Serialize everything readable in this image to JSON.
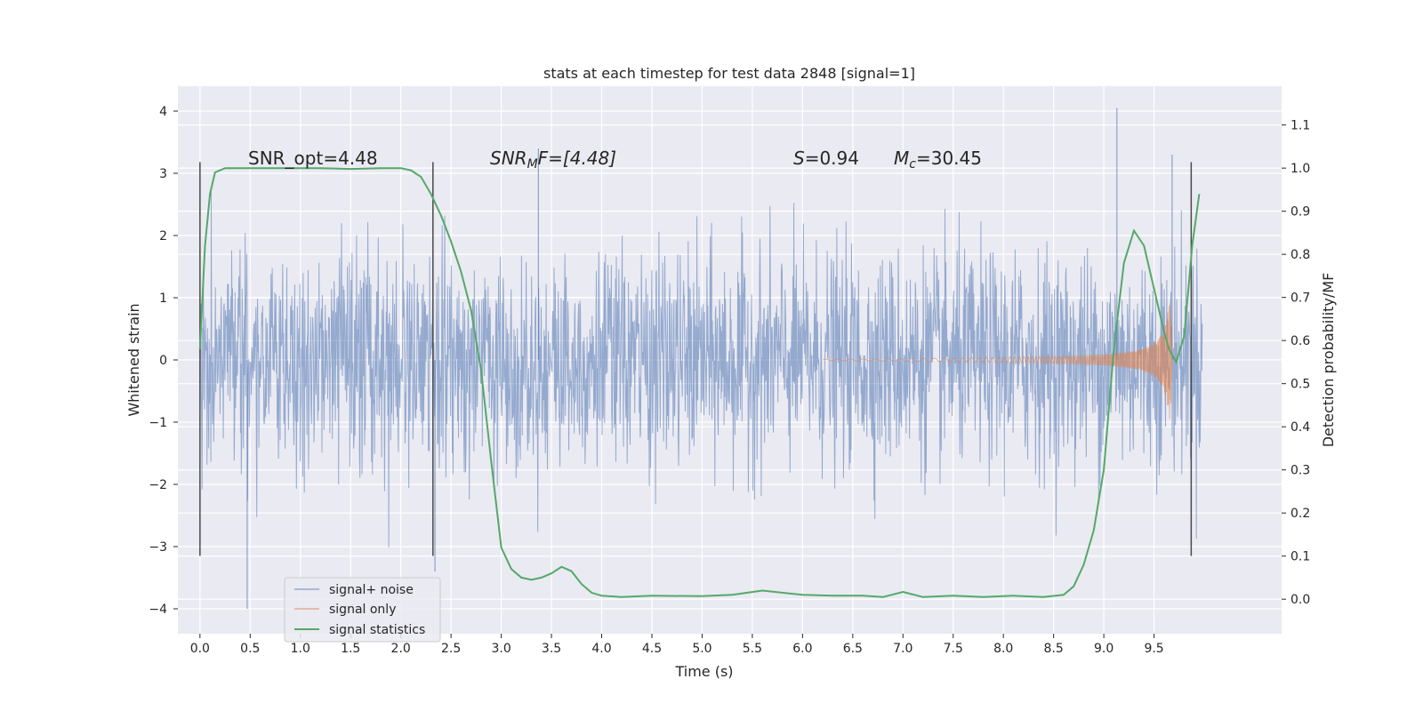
{
  "chart_data": {
    "type": "line",
    "title": "stats at each timestep for test data 2848 [signal=1]",
    "xlabel": "Time (s)",
    "ylabel": "Whitened strain",
    "y2label": "Detection probability/MF",
    "xlim": [
      -0.22,
      10.77
    ],
    "ylim": [
      -4.4,
      4.4
    ],
    "y2lim": [
      -0.08,
      1.19
    ],
    "xticks": [
      "0.0",
      "0.5",
      "1.0",
      "1.5",
      "2.0",
      "2.5",
      "3.0",
      "3.5",
      "4.0",
      "4.5",
      "5.0",
      "5.5",
      "6.0",
      "6.5",
      "7.0",
      "7.5",
      "8.0",
      "8.5",
      "9.0",
      "9.5"
    ],
    "yticks": [
      "4",
      "3",
      "2",
      "1",
      "0",
      "−1",
      "−2",
      "−3",
      "−4"
    ],
    "y2ticks": [
      "1.1",
      "1.0",
      "0.9",
      "0.8",
      "0.7",
      "0.6",
      "0.5",
      "0.4",
      "0.3",
      "0.2",
      "0.1",
      "0.0"
    ],
    "grid": true,
    "legend_position": "lower-left",
    "legend": [
      "signal+ noise",
      "signal only",
      "signal statistics"
    ],
    "annotations": {
      "snr_opt": "SNR_opt=4.48",
      "snr_mf_italic": "SNR",
      "snr_mf_sub": "M",
      "snr_mf_rest": "F=[4.48]",
      "s_italic": "S",
      "s_rest": "=0.94",
      "mc_italic": "M",
      "mc_sub": "c",
      "mc_rest": "=30.45"
    },
    "vertical_lines_x": [
      0.0,
      2.32,
      9.87
    ],
    "series": [
      {
        "name": "signal+ noise",
        "color": "#4c72b0",
        "description_range": [
          0.0,
          9.98
        ],
        "envelope_typical": [
          -1.9,
          1.9
        ],
        "peaks": [
          [
            0.47,
            -4.0
          ],
          [
            9.13,
            4.05
          ],
          [
            3.37,
            3.4
          ],
          [
            2.34,
            -3.4
          ],
          [
            9.68,
            3.3
          ]
        ]
      },
      {
        "name": "signal only",
        "color": "#dd8452",
        "x": [
          6.2,
          6.6,
          7.0,
          7.4,
          7.8,
          8.2,
          8.5,
          8.8,
          9.0,
          9.2,
          9.35,
          9.45,
          9.55,
          9.62,
          9.66,
          9.68
        ],
        "amplitude": [
          0.01,
          0.015,
          0.02,
          0.03,
          0.04,
          0.05,
          0.06,
          0.07,
          0.09,
          0.12,
          0.16,
          0.22,
          0.35,
          0.6,
          1.0,
          0.3
        ]
      },
      {
        "name": "signal statistics",
        "color": "#55a868",
        "axis": "right",
        "x": [
          0.0,
          0.05,
          0.1,
          0.15,
          0.25,
          0.4,
          0.6,
          0.8,
          1.0,
          1.2,
          1.5,
          1.8,
          2.0,
          2.1,
          2.2,
          2.3,
          2.4,
          2.5,
          2.6,
          2.7,
          2.8,
          2.9,
          3.0,
          3.1,
          3.2,
          3.3,
          3.4,
          3.5,
          3.6,
          3.7,
          3.8,
          3.9,
          4.0,
          4.2,
          4.5,
          5.0,
          5.3,
          5.6,
          6.0,
          6.3,
          6.6,
          6.8,
          7.0,
          7.2,
          7.5,
          7.8,
          8.1,
          8.4,
          8.6,
          8.7,
          8.8,
          8.9,
          9.0,
          9.1,
          9.2,
          9.3,
          9.4,
          9.5,
          9.6,
          9.65,
          9.72,
          9.8,
          9.88,
          9.95
        ],
        "y": [
          0.58,
          0.82,
          0.94,
          0.99,
          1.0,
          1.0,
          1.0,
          1.0,
          1.0,
          1.0,
          0.998,
          1.0,
          1.0,
          0.995,
          0.98,
          0.94,
          0.89,
          0.83,
          0.76,
          0.67,
          0.53,
          0.32,
          0.12,
          0.07,
          0.05,
          0.045,
          0.05,
          0.06,
          0.075,
          0.065,
          0.035,
          0.015,
          0.008,
          0.005,
          0.008,
          0.007,
          0.01,
          0.02,
          0.01,
          0.008,
          0.008,
          0.005,
          0.017,
          0.005,
          0.008,
          0.005,
          0.008,
          0.005,
          0.01,
          0.03,
          0.08,
          0.16,
          0.3,
          0.58,
          0.78,
          0.855,
          0.82,
          0.72,
          0.62,
          0.58,
          0.55,
          0.61,
          0.82,
          0.94
        ]
      }
    ]
  }
}
